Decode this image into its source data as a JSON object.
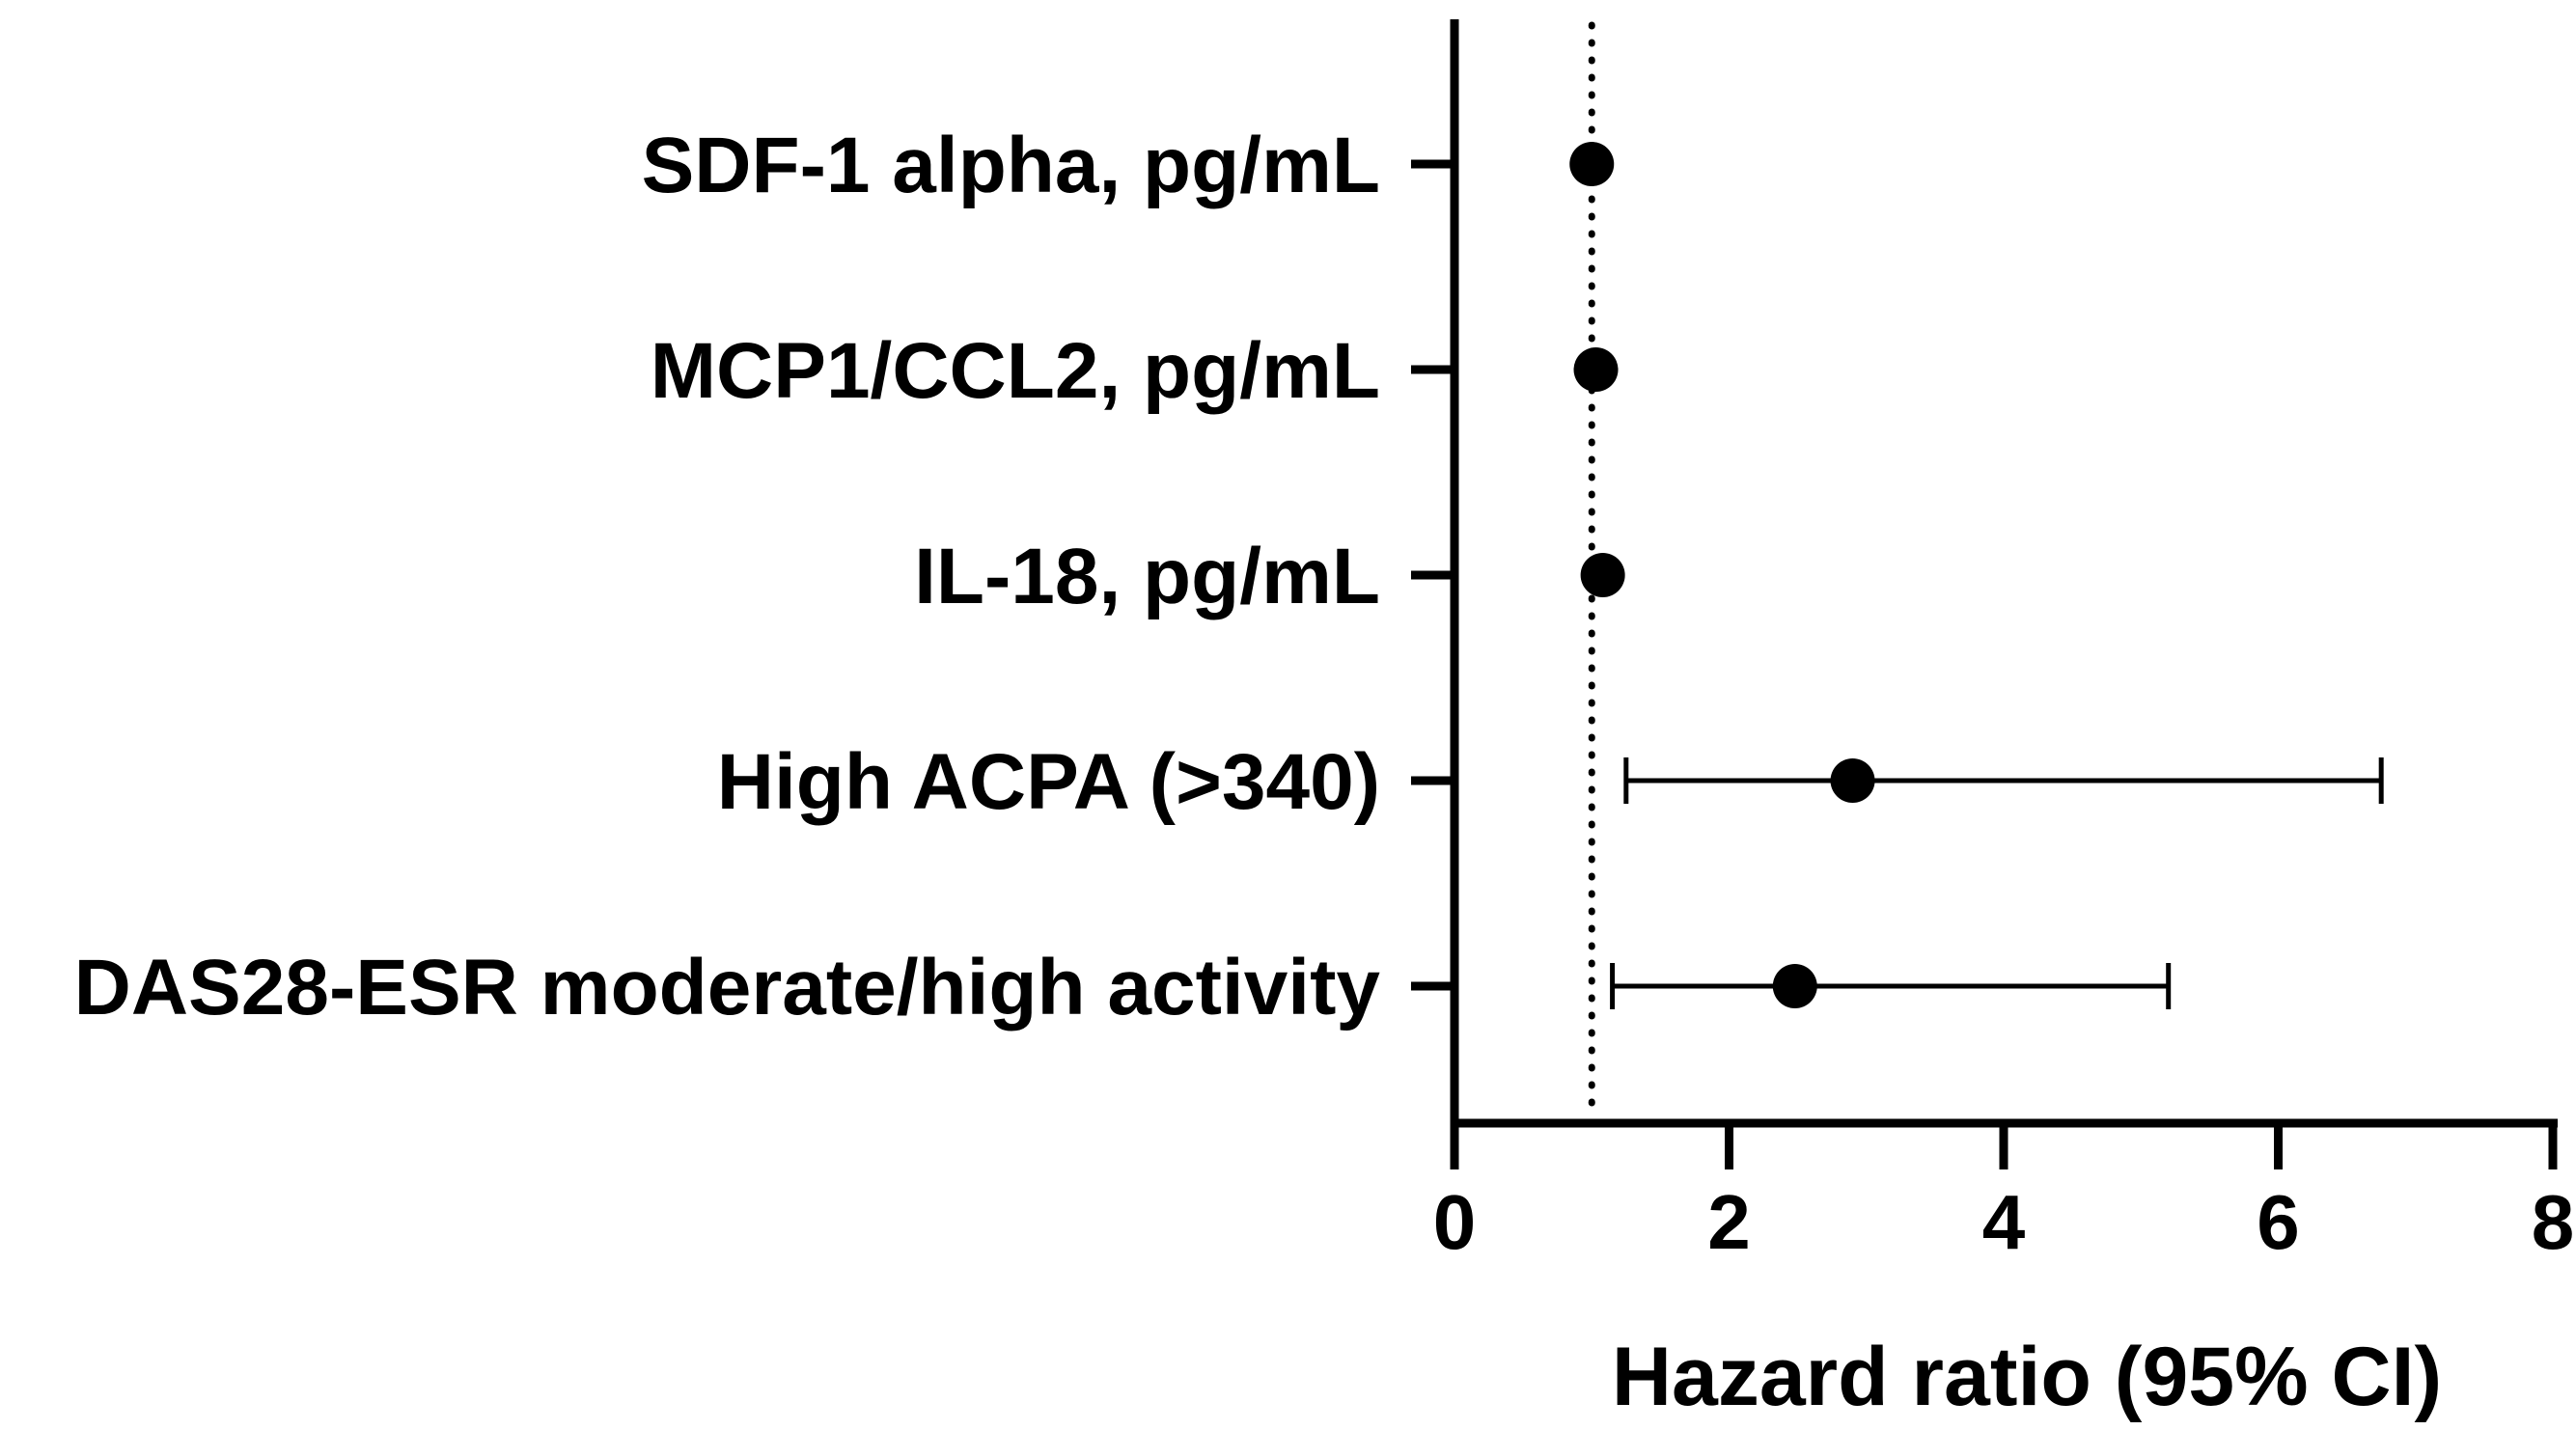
{
  "chart_data": {
    "type": "scatter",
    "subtype": "forest-plot",
    "title": "",
    "xlabel": "Hazard ratio (95% CI)",
    "ylabel": "",
    "xlim": [
      0,
      8
    ],
    "xticks": [
      0,
      2,
      4,
      6,
      8
    ],
    "reference_line": {
      "x": 1,
      "style": "dotted"
    },
    "grid": false,
    "colors": {
      "marker": "#000000",
      "axis": "#000000"
    },
    "rows": [
      {
        "label": "SDF-1 alpha, pg/mL",
        "hr": 1.0,
        "ci_low": 1.0,
        "ci_high": 1.0
      },
      {
        "label": "MCP1/CCL2, pg/mL",
        "hr": 1.03,
        "ci_low": 1.03,
        "ci_high": 1.03
      },
      {
        "label": "IL-18, pg/mL",
        "hr": 1.08,
        "ci_low": 1.08,
        "ci_high": 1.08
      },
      {
        "label": "High ACPA (>340)",
        "hr": 2.9,
        "ci_low": 1.25,
        "ci_high": 6.75
      },
      {
        "label": "DAS28-ESR moderate/high activity",
        "hr": 2.48,
        "ci_low": 1.15,
        "ci_high": 5.2
      }
    ]
  }
}
